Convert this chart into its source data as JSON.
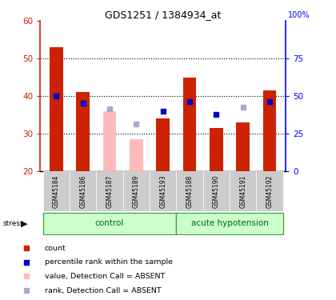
{
  "title": "GDS1251 / 1384934_at",
  "samples": [
    "GSM45184",
    "GSM45186",
    "GSM45187",
    "GSM45189",
    "GSM45193",
    "GSM45188",
    "GSM45190",
    "GSM45191",
    "GSM45192"
  ],
  "red_bars": [
    53,
    41,
    null,
    null,
    34,
    45,
    31.5,
    33,
    41.5
  ],
  "pink_bars": [
    null,
    null,
    36,
    28.5,
    null,
    null,
    null,
    null,
    null
  ],
  "blue_squares": [
    40,
    38,
    null,
    null,
    36,
    38.5,
    35,
    null,
    38.5
  ],
  "lavender_squares": [
    null,
    null,
    36.5,
    32.5,
    null,
    null,
    null,
    37,
    null
  ],
  "ylim": [
    20,
    60
  ],
  "yticks_left": [
    20,
    30,
    40,
    50,
    60
  ],
  "right_yticks_vals": [
    0,
    25,
    50,
    75
  ],
  "right_ytick_labels": [
    "0",
    "25",
    "50",
    "75"
  ],
  "ctrl_n": 5,
  "hypo_n": 4,
  "label_area_color": "#cccccc",
  "red_color": "#cc2200",
  "pink_color": "#ffbbbb",
  "blue_color": "#0000cc",
  "lavender_color": "#aaaacc",
  "group_bg_light_green": "#ccffcc",
  "group_bg_dark_green": "#44aa44",
  "group_label_color": "#006600",
  "bar_width": 0.5
}
